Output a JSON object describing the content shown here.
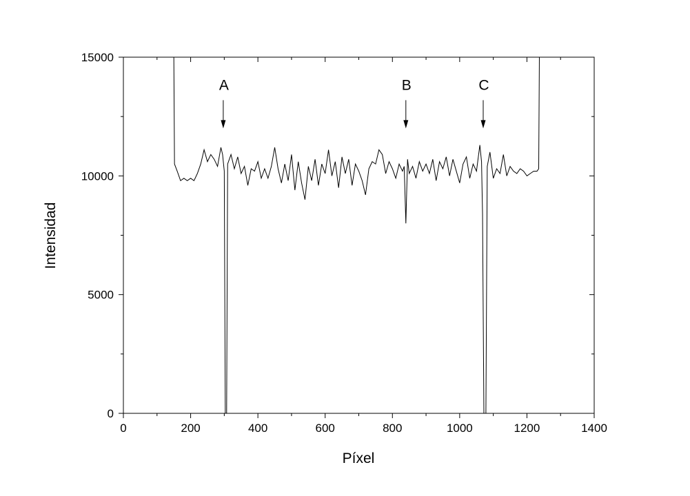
{
  "chart_data": {
    "type": "line",
    "xlabel": "Píxel",
    "ylabel": "Intensidad",
    "x": [
      150,
      152,
      160,
      170,
      180,
      190,
      200,
      210,
      220,
      230,
      240,
      250,
      260,
      270,
      280,
      290,
      295,
      300,
      303,
      307,
      310,
      320,
      330,
      340,
      350,
      360,
      370,
      380,
      390,
      400,
      410,
      420,
      430,
      440,
      450,
      460,
      470,
      480,
      490,
      500,
      510,
      520,
      530,
      540,
      550,
      560,
      570,
      580,
      590,
      600,
      610,
      620,
      630,
      640,
      650,
      660,
      670,
      680,
      690,
      700,
      710,
      720,
      730,
      740,
      750,
      760,
      770,
      780,
      790,
      800,
      810,
      820,
      830,
      835,
      840,
      845,
      850,
      860,
      870,
      880,
      890,
      900,
      910,
      920,
      930,
      940,
      950,
      960,
      970,
      980,
      990,
      1000,
      1010,
      1020,
      1030,
      1040,
      1050,
      1060,
      1065,
      1068,
      1072,
      1078,
      1082,
      1090,
      1100,
      1110,
      1120,
      1130,
      1140,
      1150,
      1160,
      1170,
      1180,
      1190,
      1200,
      1210,
      1220,
      1230,
      1235,
      1237
    ],
    "series": [
      {
        "color": "#000000",
        "values": [
          15000,
          10500,
          10200,
          9800,
          9900,
          9800,
          9900,
          9800,
          10100,
          10500,
          11100,
          10600,
          10900,
          10700,
          10400,
          11200,
          10900,
          10200,
          0,
          0,
          10500,
          10900,
          10300,
          10800,
          10100,
          10400,
          9600,
          10300,
          10200,
          10600,
          9900,
          10300,
          9900,
          10400,
          11200,
          10300,
          9700,
          10500,
          9800,
          10900,
          9400,
          10600,
          9700,
          9000,
          10400,
          9800,
          10700,
          9600,
          10500,
          10100,
          11100,
          10000,
          10600,
          9500,
          10800,
          10100,
          10700,
          9600,
          10500,
          10200,
          9800,
          9200,
          10300,
          10600,
          10500,
          11100,
          10900,
          10100,
          10600,
          10300,
          9900,
          10500,
          10200,
          10400,
          8000,
          10700,
          10100,
          10400,
          9900,
          10600,
          10200,
          10500,
          10100,
          10700,
          9800,
          10600,
          10300,
          10800,
          10000,
          10700,
          10200,
          9700,
          10500,
          10800,
          9900,
          10500,
          10200,
          11300,
          10600,
          8400,
          0,
          0,
          10400,
          11000,
          9900,
          10300,
          10100,
          10900,
          10000,
          10400,
          10200,
          10100,
          10300,
          10200,
          10000,
          10100,
          10200,
          10200,
          10300,
          15000
        ]
      }
    ],
    "xlim": [
      0,
      1400
    ],
    "xticks": [
      0,
      200,
      400,
      600,
      800,
      1000,
      1200,
      1400
    ],
    "xminorticks": [
      100,
      300,
      500,
      700,
      900,
      1100,
      1300
    ],
    "ylim": [
      0,
      15000
    ],
    "yticks": [
      0,
      5000,
      10000,
      15000
    ],
    "yminorticks": [
      2500,
      7500,
      12500
    ],
    "annotations": [
      {
        "text": "A",
        "x": 297,
        "y": 12000
      },
      {
        "text": "B",
        "x": 840,
        "y": 12000
      },
      {
        "text": "C",
        "x": 1070,
        "y": 12000
      }
    ]
  }
}
